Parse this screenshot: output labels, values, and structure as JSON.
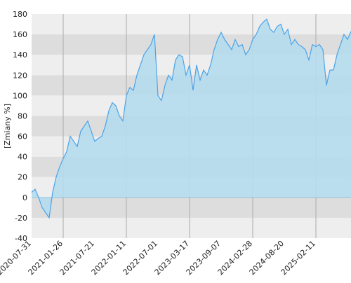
{
  "chart_data": {
    "type": "area",
    "y_label": "[Zmiany %]",
    "categories": [
      "2020-07-31",
      null,
      null,
      null,
      null,
      null,
      null,
      null,
      null,
      "2021-01-26",
      null,
      null,
      null,
      null,
      null,
      null,
      null,
      null,
      "2021-07-21",
      null,
      null,
      null,
      null,
      null,
      null,
      null,
      null,
      "2022-01-11",
      null,
      null,
      null,
      null,
      null,
      null,
      null,
      null,
      "2022-07-01",
      null,
      null,
      null,
      null,
      null,
      null,
      null,
      null,
      "2023-03-17",
      null,
      null,
      null,
      null,
      null,
      null,
      null,
      null,
      "2023-09-07",
      null,
      null,
      null,
      null,
      null,
      null,
      null,
      null,
      "2024-02-28",
      null,
      null,
      null,
      null,
      null,
      null,
      null,
      null,
      "2024-08-20",
      null,
      null,
      null,
      null,
      null,
      null,
      null,
      null,
      "2025-02-11",
      null,
      null,
      null,
      null,
      null,
      null,
      null,
      null,
      null,
      null
    ],
    "values": [
      5,
      8,
      0,
      -10,
      -15,
      -20,
      5,
      20,
      30,
      38,
      45,
      60,
      55,
      50,
      65,
      70,
      75,
      65,
      55,
      58,
      60,
      70,
      85,
      93,
      90,
      80,
      75,
      100,
      108,
      105,
      120,
      130,
      140,
      145,
      150,
      160,
      100,
      95,
      110,
      120,
      115,
      135,
      140,
      138,
      120,
      130,
      105,
      130,
      115,
      125,
      120,
      130,
      145,
      155,
      162,
      155,
      150,
      145,
      155,
      148,
      150,
      140,
      145,
      155,
      160,
      168,
      172,
      175,
      165,
      162,
      168,
      170,
      160,
      165,
      150,
      155,
      150,
      148,
      145,
      135,
      150,
      148,
      150,
      145,
      110,
      125,
      125,
      140,
      150,
      160,
      155,
      163
    ],
    "color": "#4ba3e8",
    "fill": "#b5dcee",
    "ylim": [
      -40,
      180
    ],
    "yticks": [
      -40,
      -20,
      0,
      20,
      40,
      60,
      80,
      100,
      120,
      140,
      160,
      180
    ],
    "grid": true
  }
}
